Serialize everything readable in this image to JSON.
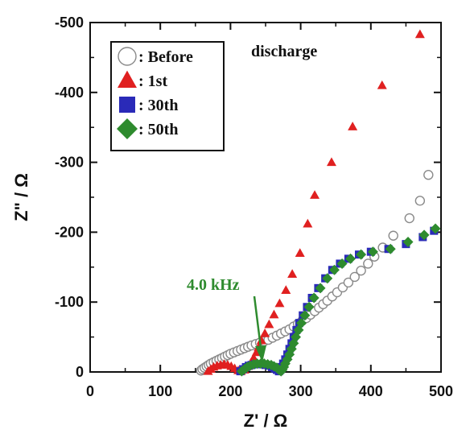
{
  "chart_data": {
    "type": "scatter",
    "title": "",
    "xlabel": "Z' / Ω",
    "ylabel": "Z\" / Ω",
    "xlim": [
      0,
      500
    ],
    "ylim": [
      0,
      -500
    ],
    "xticks": [
      0,
      100,
      200,
      300,
      400,
      500
    ],
    "yticks": [
      0,
      -100,
      -200,
      -300,
      -400,
      -500
    ],
    "xtick_labels": [
      "0",
      "100",
      "200",
      "300",
      "400",
      "500"
    ],
    "ytick_labels": [
      "0",
      "-100",
      "-200",
      "-300",
      "-400",
      "-500"
    ],
    "grid": false,
    "legend_position": "top-left",
    "annotations": [
      {
        "text": "discharge",
        "color": "#111111"
      },
      {
        "text": "4.0 kHz",
        "color": "#2e8b2e",
        "arrow_to": [
          248,
          -10
        ]
      }
    ],
    "series": [
      {
        "name": ": Before",
        "marker": "circle-open",
        "color": "#8a8a8a",
        "points": [
          [
            158,
            -2
          ],
          [
            160,
            -4
          ],
          [
            163,
            -6
          ],
          [
            166,
            -8
          ],
          [
            169,
            -10
          ],
          [
            172,
            -12
          ],
          [
            176,
            -14
          ],
          [
            180,
            -16
          ],
          [
            184,
            -18
          ],
          [
            188,
            -20
          ],
          [
            192,
            -22
          ],
          [
            196,
            -24
          ],
          [
            200,
            -26
          ],
          [
            205,
            -28
          ],
          [
            210,
            -30
          ],
          [
            215,
            -32
          ],
          [
            220,
            -34
          ],
          [
            225,
            -36
          ],
          [
            230,
            -38
          ],
          [
            236,
            -40
          ],
          [
            242,
            -42
          ],
          [
            248,
            -44
          ],
          [
            254,
            -46
          ],
          [
            260,
            -49
          ],
          [
            266,
            -52
          ],
          [
            272,
            -55
          ],
          [
            278,
            -58
          ],
          [
            284,
            -61
          ],
          [
            290,
            -65
          ],
          [
            296,
            -69
          ],
          [
            302,
            -73
          ],
          [
            308,
            -77
          ],
          [
            314,
            -82
          ],
          [
            320,
            -87
          ],
          [
            326,
            -92
          ],
          [
            332,
            -97
          ],
          [
            338,
            -102
          ],
          [
            345,
            -108
          ],
          [
            352,
            -114
          ],
          [
            360,
            -121
          ],
          [
            368,
            -128
          ],
          [
            377,
            -136
          ],
          [
            386,
            -145
          ],
          [
            396,
            -155
          ],
          [
            405,
            -165
          ],
          [
            417,
            -178
          ],
          [
            432,
            -195
          ],
          [
            455,
            -220
          ],
          [
            470,
            -245
          ],
          [
            482,
            -282
          ]
        ]
      },
      {
        "name": ": 1st",
        "marker": "triangle",
        "color": "#e02020",
        "points": [
          [
            168,
            -1
          ],
          [
            172,
            -4
          ],
          [
            176,
            -7
          ],
          [
            181,
            -9
          ],
          [
            186,
            -10
          ],
          [
            191,
            -11
          ],
          [
            196,
            -10
          ],
          [
            201,
            -8
          ],
          [
            206,
            -5
          ],
          [
            211,
            -2
          ],
          [
            215,
            -1
          ],
          [
            220,
            -3
          ],
          [
            225,
            -8
          ],
          [
            229,
            -13
          ],
          [
            233,
            -20
          ],
          [
            237,
            -28
          ],
          [
            240,
            -35
          ],
          [
            244,
            -45
          ],
          [
            249,
            -55
          ],
          [
            255,
            -68
          ],
          [
            262,
            -82
          ],
          [
            270,
            -98
          ],
          [
            279,
            -117
          ],
          [
            288,
            -140
          ],
          [
            299,
            -170
          ],
          [
            310,
            -212
          ],
          [
            320,
            -253
          ],
          [
            344,
            -300
          ],
          [
            374,
            -351
          ],
          [
            416,
            -410
          ],
          [
            470,
            -483
          ]
        ]
      },
      {
        "name": ": 30th",
        "marker": "square",
        "color": "#2a2ab8",
        "points": [
          [
            214,
            -1
          ],
          [
            218,
            -4
          ],
          [
            222,
            -7
          ],
          [
            226,
            -9
          ],
          [
            230,
            -10
          ],
          [
            235,
            -11
          ],
          [
            240,
            -11
          ],
          [
            245,
            -11
          ],
          [
            250,
            -10
          ],
          [
            255,
            -9
          ],
          [
            259,
            -7
          ],
          [
            263,
            -5
          ],
          [
            266,
            -3
          ],
          [
            269,
            -1
          ],
          [
            271,
            -3
          ],
          [
            273,
            -7
          ],
          [
            275,
            -12
          ],
          [
            278,
            -18
          ],
          [
            281,
            -25
          ],
          [
            284,
            -33
          ],
          [
            287,
            -41
          ],
          [
            290,
            -50
          ],
          [
            294,
            -60
          ],
          [
            298,
            -70
          ],
          [
            303,
            -81
          ],
          [
            309,
            -93
          ],
          [
            316,
            -106
          ],
          [
            325,
            -120
          ],
          [
            335,
            -134
          ],
          [
            345,
            -146
          ],
          [
            356,
            -155
          ],
          [
            368,
            -162
          ],
          [
            383,
            -168
          ],
          [
            400,
            -172
          ],
          [
            425,
            -176
          ],
          [
            450,
            -183
          ],
          [
            474,
            -193
          ],
          [
            490,
            -202
          ]
        ]
      },
      {
        "name": ": 50th",
        "marker": "diamond",
        "color": "#2e8b2e",
        "points": [
          [
            216,
            -1
          ],
          [
            220,
            -4
          ],
          [
            224,
            -7
          ],
          [
            228,
            -9
          ],
          [
            233,
            -11
          ],
          [
            238,
            -12
          ],
          [
            243,
            -12
          ],
          [
            248,
            -12
          ],
          [
            253,
            -11
          ],
          [
            258,
            -10
          ],
          [
            262,
            -8
          ],
          [
            266,
            -6
          ],
          [
            269,
            -3
          ],
          [
            272,
            -1
          ],
          [
            274,
            -3
          ],
          [
            276,
            -7
          ],
          [
            278,
            -12
          ],
          [
            281,
            -18
          ],
          [
            284,
            -25
          ],
          [
            287,
            -33
          ],
          [
            290,
            -41
          ],
          [
            293,
            -50
          ],
          [
            297,
            -60
          ],
          [
            301,
            -70
          ],
          [
            306,
            -81
          ],
          [
            312,
            -93
          ],
          [
            319,
            -106
          ],
          [
            328,
            -120
          ],
          [
            338,
            -134
          ],
          [
            348,
            -146
          ],
          [
            359,
            -155
          ],
          [
            371,
            -162
          ],
          [
            386,
            -168
          ],
          [
            403,
            -172
          ],
          [
            428,
            -176
          ],
          [
            453,
            -186
          ],
          [
            476,
            -196
          ],
          [
            492,
            -205
          ]
        ]
      }
    ]
  }
}
